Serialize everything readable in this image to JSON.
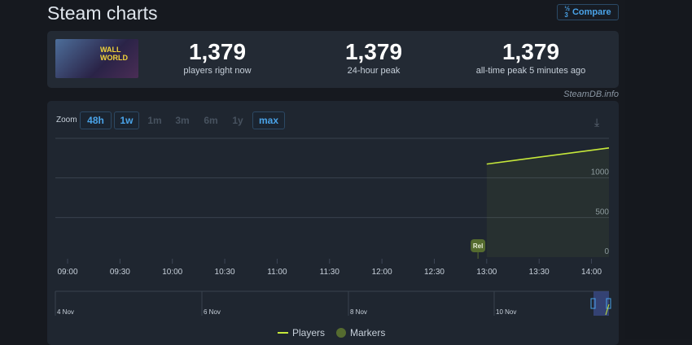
{
  "header": {
    "title": "Steam charts",
    "compare_label": "Compare",
    "compare_icon": "sort-numeric-icon"
  },
  "game": {
    "logo_text": "WALL WORLD 2"
  },
  "stats": [
    {
      "value": "1,379",
      "label": "players right now"
    },
    {
      "value": "1,379",
      "label": "24-hour peak"
    },
    {
      "value": "1,379",
      "label": "all-time peak 5 minutes ago"
    }
  ],
  "credit": "SteamDB.info",
  "zoom": {
    "label": "Zoom",
    "options": [
      {
        "label": "48h",
        "enabled": true
      },
      {
        "label": "1w",
        "enabled": true
      },
      {
        "label": "1m",
        "enabled": false
      },
      {
        "label": "3m",
        "enabled": false
      },
      {
        "label": "6m",
        "enabled": false
      },
      {
        "label": "1y",
        "enabled": false
      },
      {
        "label": "max",
        "enabled": true,
        "selected": true
      }
    ]
  },
  "chart_data": {
    "type": "area",
    "x_ticks": [
      "09:00",
      "09:30",
      "10:00",
      "10:30",
      "11:00",
      "11:30",
      "12:00",
      "12:30",
      "13:00",
      "13:30",
      "14:00"
    ],
    "y_ticks": [
      "0",
      "500",
      "1000"
    ],
    "ylim": [
      0,
      1500
    ],
    "xlim": [
      "09:00",
      "14:10"
    ],
    "series": [
      {
        "name": "Players",
        "color": "#c6e83a",
        "points": [
          [
            "13:00",
            1175
          ],
          [
            "14:10",
            1379
          ]
        ]
      }
    ],
    "markers": [
      {
        "label": "Rel",
        "time": "12:55",
        "color": "#556b2f"
      }
    ],
    "navigator_labels": [
      "4 Nov",
      "6 Nov",
      "8 Nov",
      "10 Nov"
    ],
    "legend": [
      {
        "name": "Players",
        "color": "#c6e83a"
      },
      {
        "name": "Markers",
        "color": "#556b2f"
      }
    ]
  }
}
